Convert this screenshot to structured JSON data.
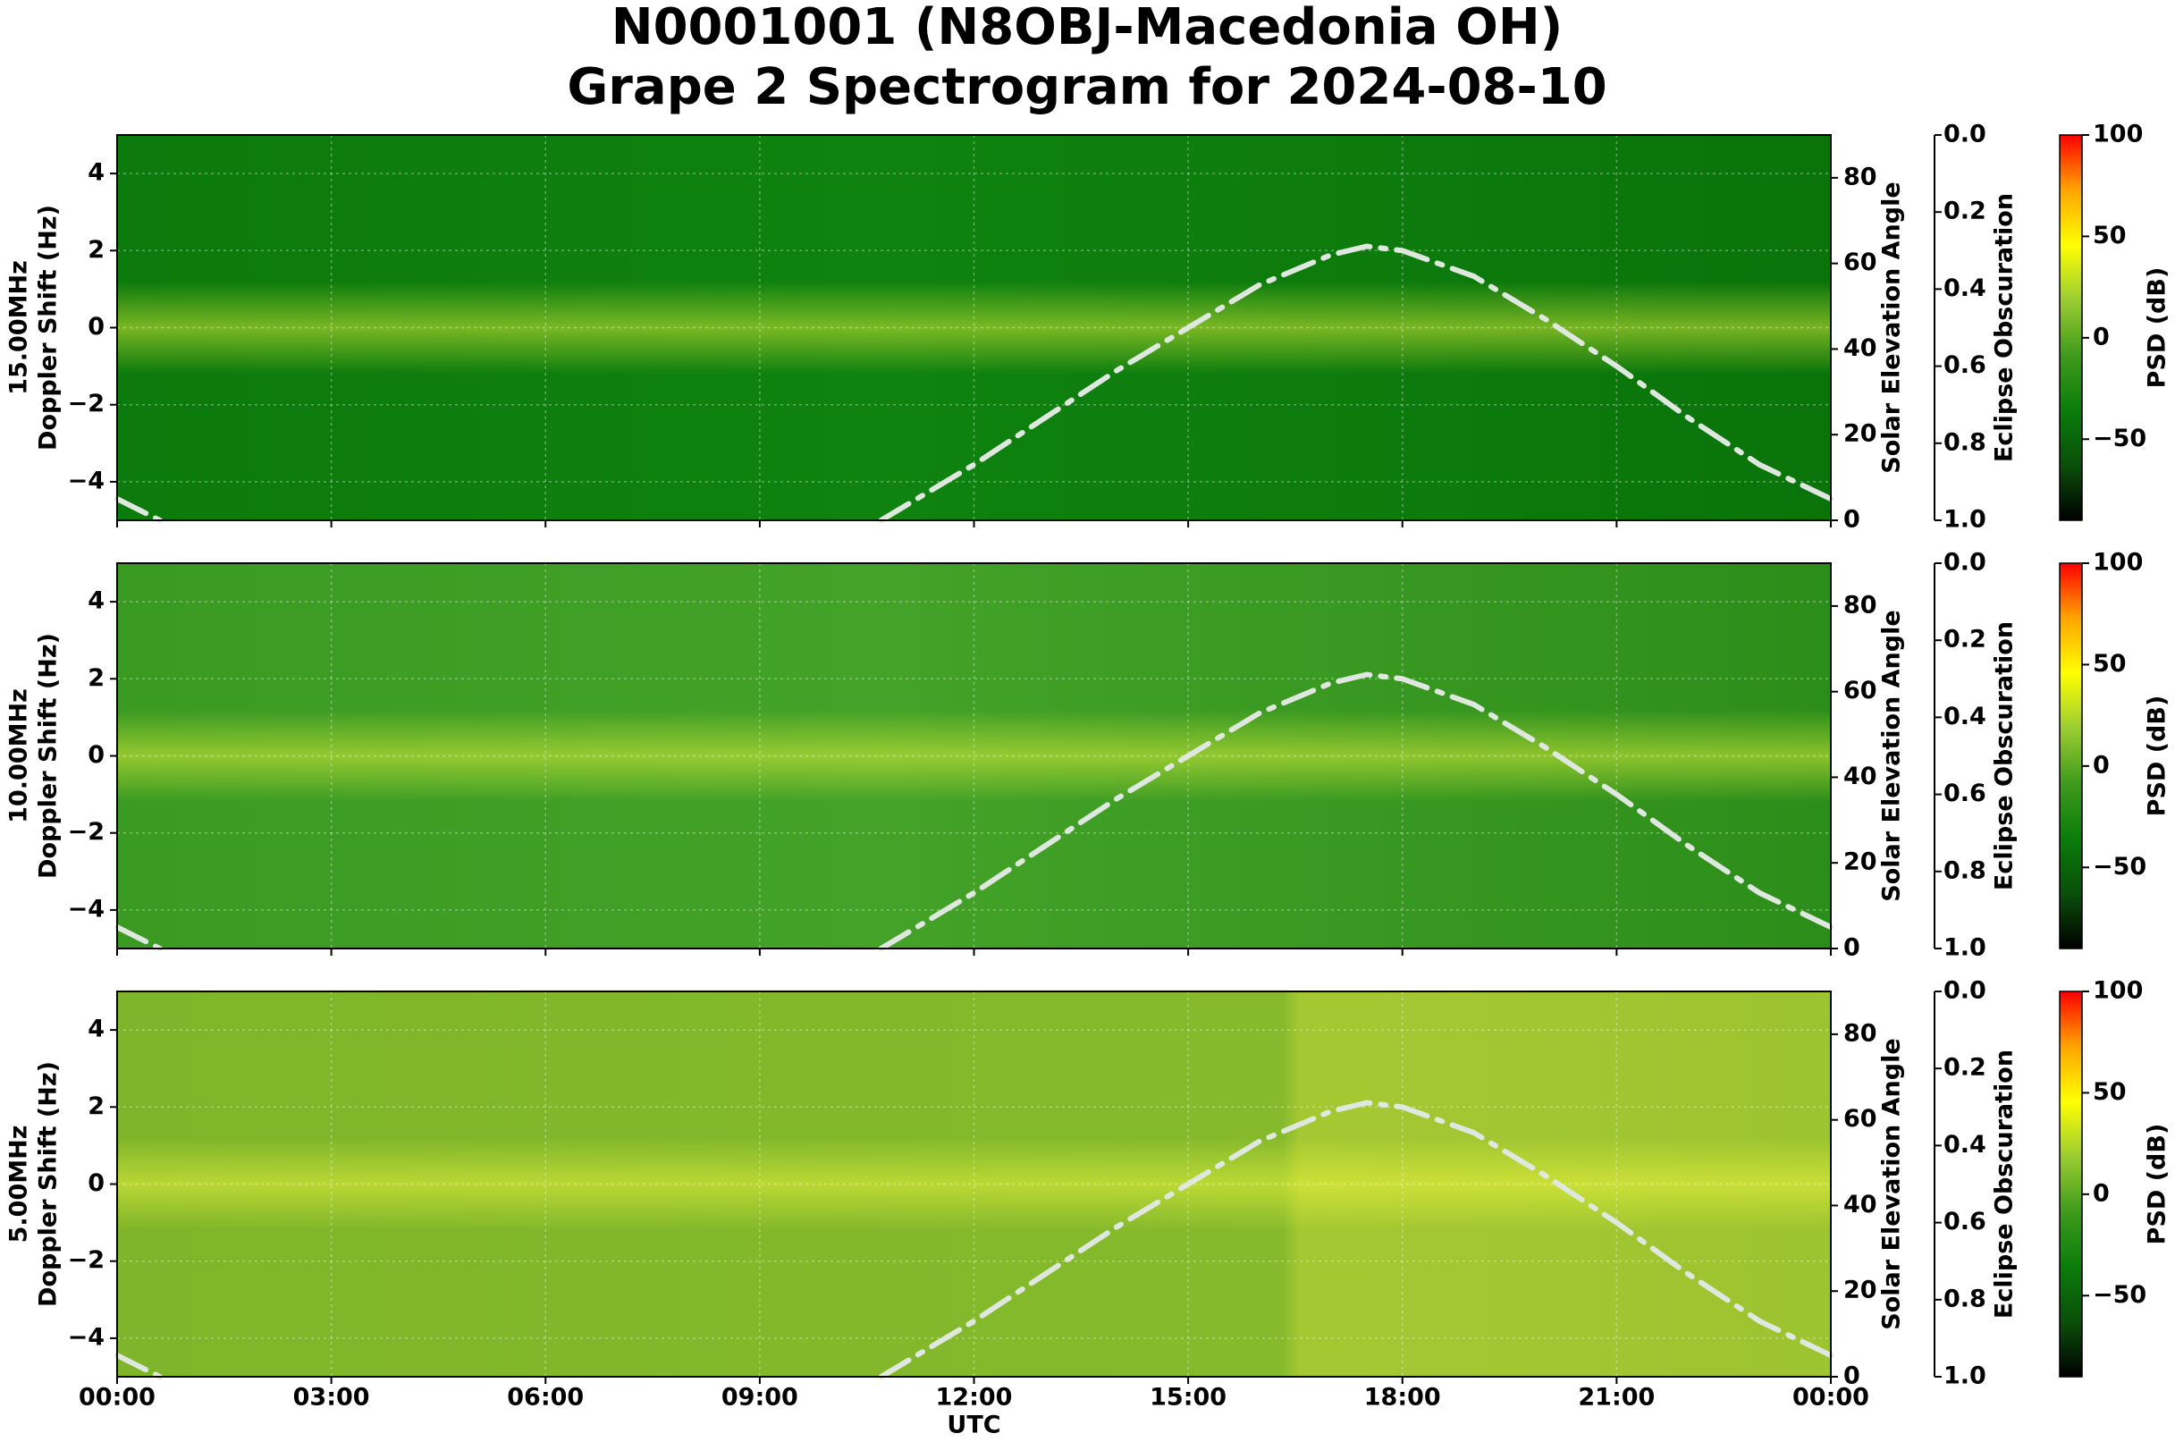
{
  "title": [
    "N0001001 (N8OBJ-Macedonia OH)",
    "Grape 2 Spectrogram for 2024-08-10"
  ],
  "colormap": [
    "#000000",
    "#0a4f0a",
    "#0b7d0b",
    "#3f9a1c",
    "#9acd32",
    "#ffff00",
    "#ffa500",
    "#ff0000"
  ],
  "chart_data": [
    {
      "type": "spectrogram",
      "ylabel": [
        "15.00MHz",
        "Doppler Shift (Hz)"
      ],
      "xlim": [
        0,
        24
      ],
      "xticks": [
        0,
        3,
        6,
        9,
        12,
        15,
        18,
        21,
        24
      ],
      "ylim": [
        -5,
        5
      ],
      "yticks": [
        {
          "value": -4,
          "label": "−4"
        },
        {
          "value": -2,
          "label": "−2"
        },
        0,
        2,
        4
      ],
      "y2label": "Solar Elevation Angle",
      "y2lim": [
        0,
        90
      ],
      "y2ticks": [
        0,
        20,
        40,
        60,
        80
      ],
      "y3label": "Eclipse Obscuration",
      "y3lim": [
        1,
        0
      ],
      "y3ticks": [
        {
          "value": 0,
          "label": "0.0"
        },
        0.2,
        0.4,
        0.6,
        0.8,
        {
          "value": 1,
          "label": "1.0"
        }
      ],
      "clabel": "PSD (dB)",
      "clim": [
        -90,
        100
      ],
      "cticks": [
        {
          "value": -50,
          "label": "−50"
        },
        0,
        50,
        100
      ],
      "grid": true,
      "elevation": {
        "axis": "y2",
        "color": "#dfe8df",
        "x": [
          0,
          0.6,
          null,
          10.7,
          12,
          13,
          14,
          15,
          16,
          17,
          17.5,
          18,
          19,
          20,
          21,
          22,
          23,
          24
        ],
        "values": [
          5,
          0,
          null,
          0,
          13,
          24,
          35,
          45,
          55,
          62,
          64,
          63,
          57,
          47,
          36,
          24,
          13,
          5
        ]
      }
    },
    {
      "type": "spectrogram",
      "ylabel": [
        "10.00MHz",
        "Doppler Shift (Hz)"
      ],
      "xlim": [
        0,
        24
      ],
      "xticks": [
        0,
        3,
        6,
        9,
        12,
        15,
        18,
        21,
        24
      ],
      "ylim": [
        -5,
        5
      ],
      "yticks": [
        {
          "value": -4,
          "label": "−4"
        },
        {
          "value": -2,
          "label": "−2"
        },
        0,
        2,
        4
      ],
      "y2label": "Solar Elevation Angle",
      "y2lim": [
        0,
        90
      ],
      "y2ticks": [
        0,
        20,
        40,
        60,
        80
      ],
      "y3label": "Eclipse Obscuration",
      "y3lim": [
        1,
        0
      ],
      "y3ticks": [
        {
          "value": 0,
          "label": "0.0"
        },
        0.2,
        0.4,
        0.6,
        0.8,
        {
          "value": 1,
          "label": "1.0"
        }
      ],
      "clabel": "PSD (dB)",
      "clim": [
        -90,
        100
      ],
      "cticks": [
        {
          "value": -50,
          "label": "−50"
        },
        0,
        50,
        100
      ],
      "grid": true,
      "elevation": {
        "axis": "y2",
        "color": "#dfe8df",
        "x": [
          0,
          0.6,
          null,
          10.7,
          12,
          13,
          14,
          15,
          16,
          17,
          17.5,
          18,
          19,
          20,
          21,
          22,
          23,
          24
        ],
        "values": [
          5,
          0,
          null,
          0,
          13,
          24,
          35,
          45,
          55,
          62,
          64,
          63,
          57,
          47,
          36,
          24,
          13,
          5
        ]
      }
    },
    {
      "type": "spectrogram",
      "ylabel": [
        "5.00MHz",
        "Doppler Shift (Hz)"
      ],
      "xlabel": "UTC",
      "xlim": [
        0,
        24
      ],
      "xticks": [
        {
          "value": 0,
          "label": "00:00"
        },
        {
          "value": 3,
          "label": "03:00"
        },
        {
          "value": 6,
          "label": "06:00"
        },
        {
          "value": 9,
          "label": "09:00"
        },
        {
          "value": 12,
          "label": "12:00"
        },
        {
          "value": 15,
          "label": "15:00"
        },
        {
          "value": 18,
          "label": "18:00"
        },
        {
          "value": 21,
          "label": "21:00"
        },
        {
          "value": 24,
          "label": "00:00"
        }
      ],
      "ylim": [
        -5,
        5
      ],
      "yticks": [
        {
          "value": -4,
          "label": "−4"
        },
        {
          "value": -2,
          "label": "−2"
        },
        0,
        2,
        4
      ],
      "y2label": "Solar Elevation Angle",
      "y2lim": [
        0,
        90
      ],
      "y2ticks": [
        0,
        20,
        40,
        60,
        80
      ],
      "y3label": "Eclipse Obscuration",
      "y3lim": [
        1,
        0
      ],
      "y3ticks": [
        {
          "value": 0,
          "label": "0.0"
        },
        0.2,
        0.4,
        0.6,
        0.8,
        {
          "value": 1,
          "label": "1.0"
        }
      ],
      "clabel": "PSD (dB)",
      "clim": [
        -90,
        100
      ],
      "cticks": [
        {
          "value": -50,
          "label": "−50"
        },
        0,
        50,
        100
      ],
      "grid": true,
      "elevation": {
        "axis": "y2",
        "color": "#dfe8df",
        "x": [
          0,
          0.6,
          null,
          10.7,
          12,
          13,
          14,
          15,
          16,
          17,
          17.5,
          18,
          19,
          20,
          21,
          22,
          23,
          24
        ],
        "values": [
          5,
          0,
          null,
          0,
          13,
          24,
          35,
          45,
          55,
          62,
          64,
          63,
          57,
          47,
          36,
          24,
          13,
          5
        ]
      }
    }
  ]
}
